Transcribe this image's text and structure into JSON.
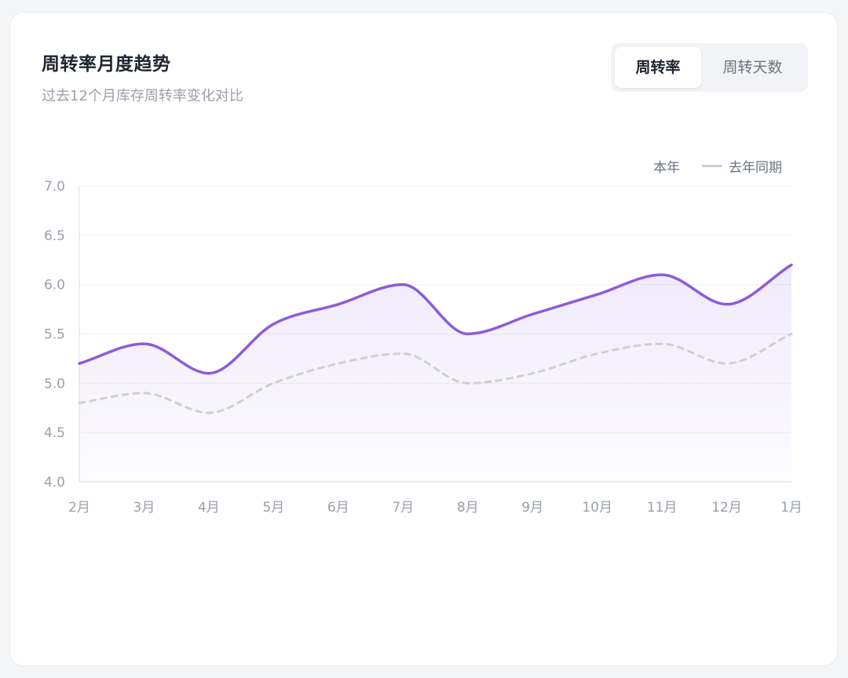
{
  "header": {
    "title": "周转率月度趋势",
    "subtitle": "过去12个月库存周转率变化对比"
  },
  "toggle": {
    "options": [
      "周转率",
      "周转天数"
    ],
    "active_index": 0
  },
  "legend": {
    "current": "本年",
    "previous": "去年同期"
  },
  "colors": {
    "current_line": "#8b5cdc",
    "current_area": "#8b5cdc",
    "previous_line": "#cfcfd6",
    "grid": "#eef0f3",
    "axis": "#dcdfe4"
  },
  "chart_data": {
    "type": "line",
    "categories": [
      "2月",
      "3月",
      "4月",
      "5月",
      "6月",
      "7月",
      "8月",
      "9月",
      "10月",
      "11月",
      "12月",
      "1月"
    ],
    "series": [
      {
        "name": "本年",
        "values": [
          5.2,
          5.4,
          5.1,
          5.6,
          5.8,
          6.0,
          5.5,
          5.7,
          5.9,
          6.1,
          5.8,
          6.2
        ],
        "style": "solid",
        "area": true
      },
      {
        "name": "去年同期",
        "values": [
          4.8,
          4.9,
          4.7,
          5.0,
          5.2,
          5.3,
          5.0,
          5.1,
          5.3,
          5.4,
          5.2,
          5.5
        ],
        "style": "dashed",
        "area": false
      }
    ],
    "y_ticks": [
      "4.0",
      "4.5",
      "5.0",
      "5.5",
      "6.0",
      "6.5",
      "7.0"
    ],
    "ylim": [
      4.0,
      7.0
    ],
    "grid": true,
    "legend_position": "top-right",
    "xlabel": "",
    "ylabel": ""
  }
}
